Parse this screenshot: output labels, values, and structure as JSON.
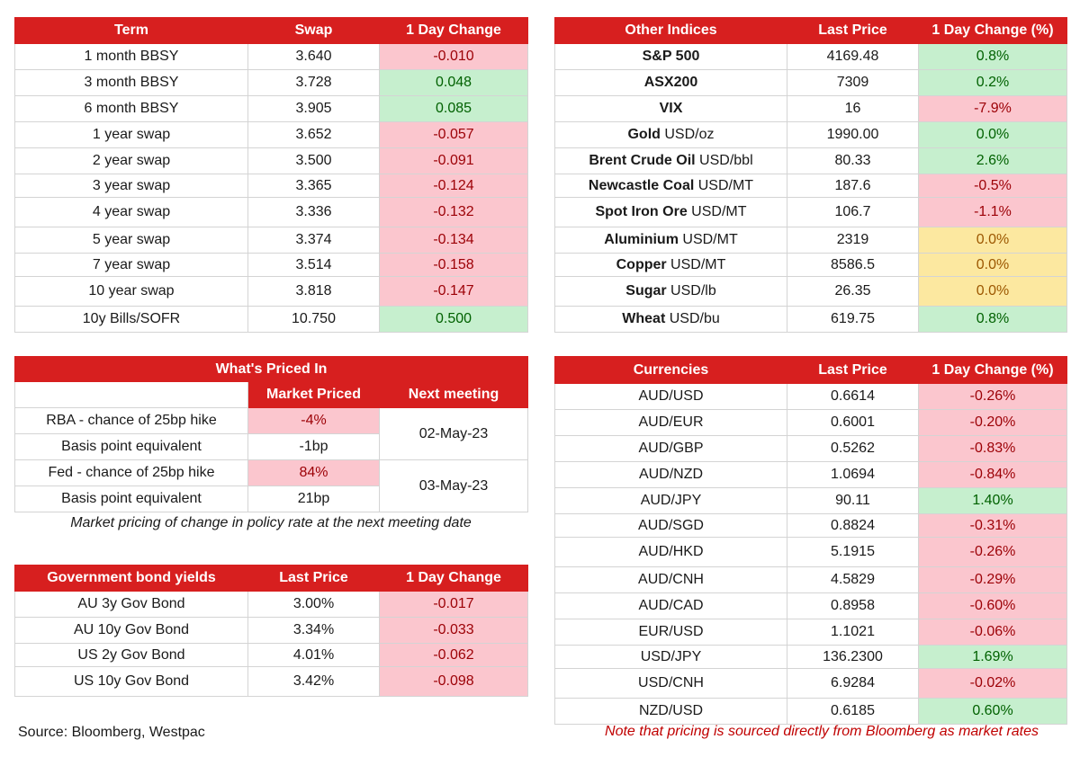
{
  "swaps": {
    "headers": [
      "Term",
      "Swap",
      "1 Day Change"
    ],
    "rows": [
      {
        "term": "1 month BBSY",
        "swap": "3.640",
        "change": "-0.010"
      },
      {
        "term": "3 month BBSY",
        "swap": "3.728",
        "change": "0.048"
      },
      {
        "term": "6 month BBSY",
        "swap": "3.905",
        "change": "0.085"
      },
      {
        "term": "1 year swap",
        "swap": "3.652",
        "change": "-0.057"
      },
      {
        "term": "2 year swap",
        "swap": "3.500",
        "change": "-0.091"
      },
      {
        "term": "3 year swap",
        "swap": "3.365",
        "change": "-0.124"
      },
      {
        "term": "4 year swap",
        "swap": "3.336",
        "change": "-0.132"
      },
      {
        "term": "5 year swap",
        "swap": "3.374",
        "change": "-0.134"
      },
      {
        "term": "7 year swap",
        "swap": "3.514",
        "change": "-0.158"
      },
      {
        "term": "10 year swap",
        "swap": "3.818",
        "change": "-0.147"
      },
      {
        "term": "10y Bills/SOFR",
        "swap": "10.750",
        "change": "0.500"
      }
    ]
  },
  "indices": {
    "headers": [
      "Other Indices",
      "Last Price",
      "1 Day Change (%)"
    ],
    "rows": [
      {
        "name": "S&P 500",
        "unit": "",
        "price": "4169.48",
        "change": "0.8%"
      },
      {
        "name": "ASX200",
        "unit": "",
        "price": "7309",
        "change": "0.2%"
      },
      {
        "name": "VIX",
        "unit": "",
        "price": "16",
        "change": "-7.9%"
      },
      {
        "name": "Gold",
        "unit": " USD/oz",
        "price": "1990.00",
        "change": "0.0%"
      },
      {
        "name": "Brent Crude Oil",
        "unit": " USD/bbl",
        "price": "80.33",
        "change": "2.6%"
      },
      {
        "name": "Newcastle Coal",
        "unit": " USD/MT",
        "price": "187.6",
        "change": "-0.5%"
      },
      {
        "name": "Spot Iron Ore",
        "unit": " USD/MT",
        "price": "106.7",
        "change": "-1.1%"
      },
      {
        "name": "Aluminium",
        "unit": " USD/MT",
        "price": "2319",
        "change": "0.0%"
      },
      {
        "name": "Copper",
        "unit": " USD/MT",
        "price": "8586.5",
        "change": "0.0%"
      },
      {
        "name": "Sugar",
        "unit": " USD/lb",
        "price": "26.35",
        "change": "0.0%"
      },
      {
        "name": "Wheat",
        "unit": " USD/bu",
        "price": "619.75",
        "change": "0.8%"
      }
    ]
  },
  "priced_in": {
    "title": "What's Priced In",
    "col_market": "Market Priced",
    "col_meeting": "Next meeting",
    "rows": [
      {
        "label": "RBA - chance of 25bp hike",
        "value": "-4%"
      },
      {
        "label": "Basis point equivalent",
        "value": "-1bp"
      },
      {
        "label": "Fed - chance of 25bp hike",
        "value": "84%"
      },
      {
        "label": "Basis point equivalent",
        "value": "21bp"
      }
    ],
    "meetings": [
      "02-May-23",
      "03-May-23"
    ],
    "note": "Market pricing of change in policy rate at the next meeting date"
  },
  "bonds": {
    "headers": [
      "Government bond yields",
      "Last Price",
      "1 Day Change"
    ],
    "rows": [
      {
        "name": "AU 3y Gov Bond",
        "price": "3.00%",
        "change": "-0.017"
      },
      {
        "name": "AU 10y Gov Bond",
        "price": "3.34%",
        "change": "-0.033"
      },
      {
        "name": "US 2y Gov Bond",
        "price": "4.01%",
        "change": "-0.062"
      },
      {
        "name": "US 10y Gov Bond",
        "price": "3.42%",
        "change": "-0.098"
      }
    ]
  },
  "currencies": {
    "headers": [
      "Currencies",
      "Last Price",
      "1 Day Change (%)"
    ],
    "rows": [
      {
        "pair": "AUD/USD",
        "price": "0.6614",
        "change": "-0.26%"
      },
      {
        "pair": "AUD/EUR",
        "price": "0.6001",
        "change": "-0.20%"
      },
      {
        "pair": "AUD/GBP",
        "price": "0.5262",
        "change": "-0.83%"
      },
      {
        "pair": "AUD/NZD",
        "price": "1.0694",
        "change": "-0.84%"
      },
      {
        "pair": "AUD/JPY",
        "price": "90.11",
        "change": "1.40%"
      },
      {
        "pair": "AUD/SGD",
        "price": "0.8824",
        "change": "-0.31%"
      },
      {
        "pair": "AUD/HKD",
        "price": "5.1915",
        "change": "-0.26%"
      },
      {
        "pair": "AUD/CNH",
        "price": "4.5829",
        "change": "-0.29%"
      },
      {
        "pair": "AUD/CAD",
        "price": "0.8958",
        "change": "-0.60%"
      },
      {
        "pair": "EUR/USD",
        "price": "1.1021",
        "change": "-0.06%"
      },
      {
        "pair": "USD/JPY",
        "price": "136.2300",
        "change": "1.69%"
      },
      {
        "pair": "USD/CNH",
        "price": "6.9284",
        "change": "-0.02%"
      },
      {
        "pair": "NZD/USD",
        "price": "0.6185",
        "change": "0.60%"
      }
    ]
  },
  "source": "Source: Bloomberg, Westpac",
  "disclaimer": "Note that pricing is sourced directly from Bloomberg as market rates",
  "colors": {
    "header_red": "#d71f1f",
    "negative_fill": "#fbc6ce",
    "positive_fill": "#c6efce",
    "neutral_fill": "#fce8a0",
    "disclaimer_text": "#c00000"
  }
}
